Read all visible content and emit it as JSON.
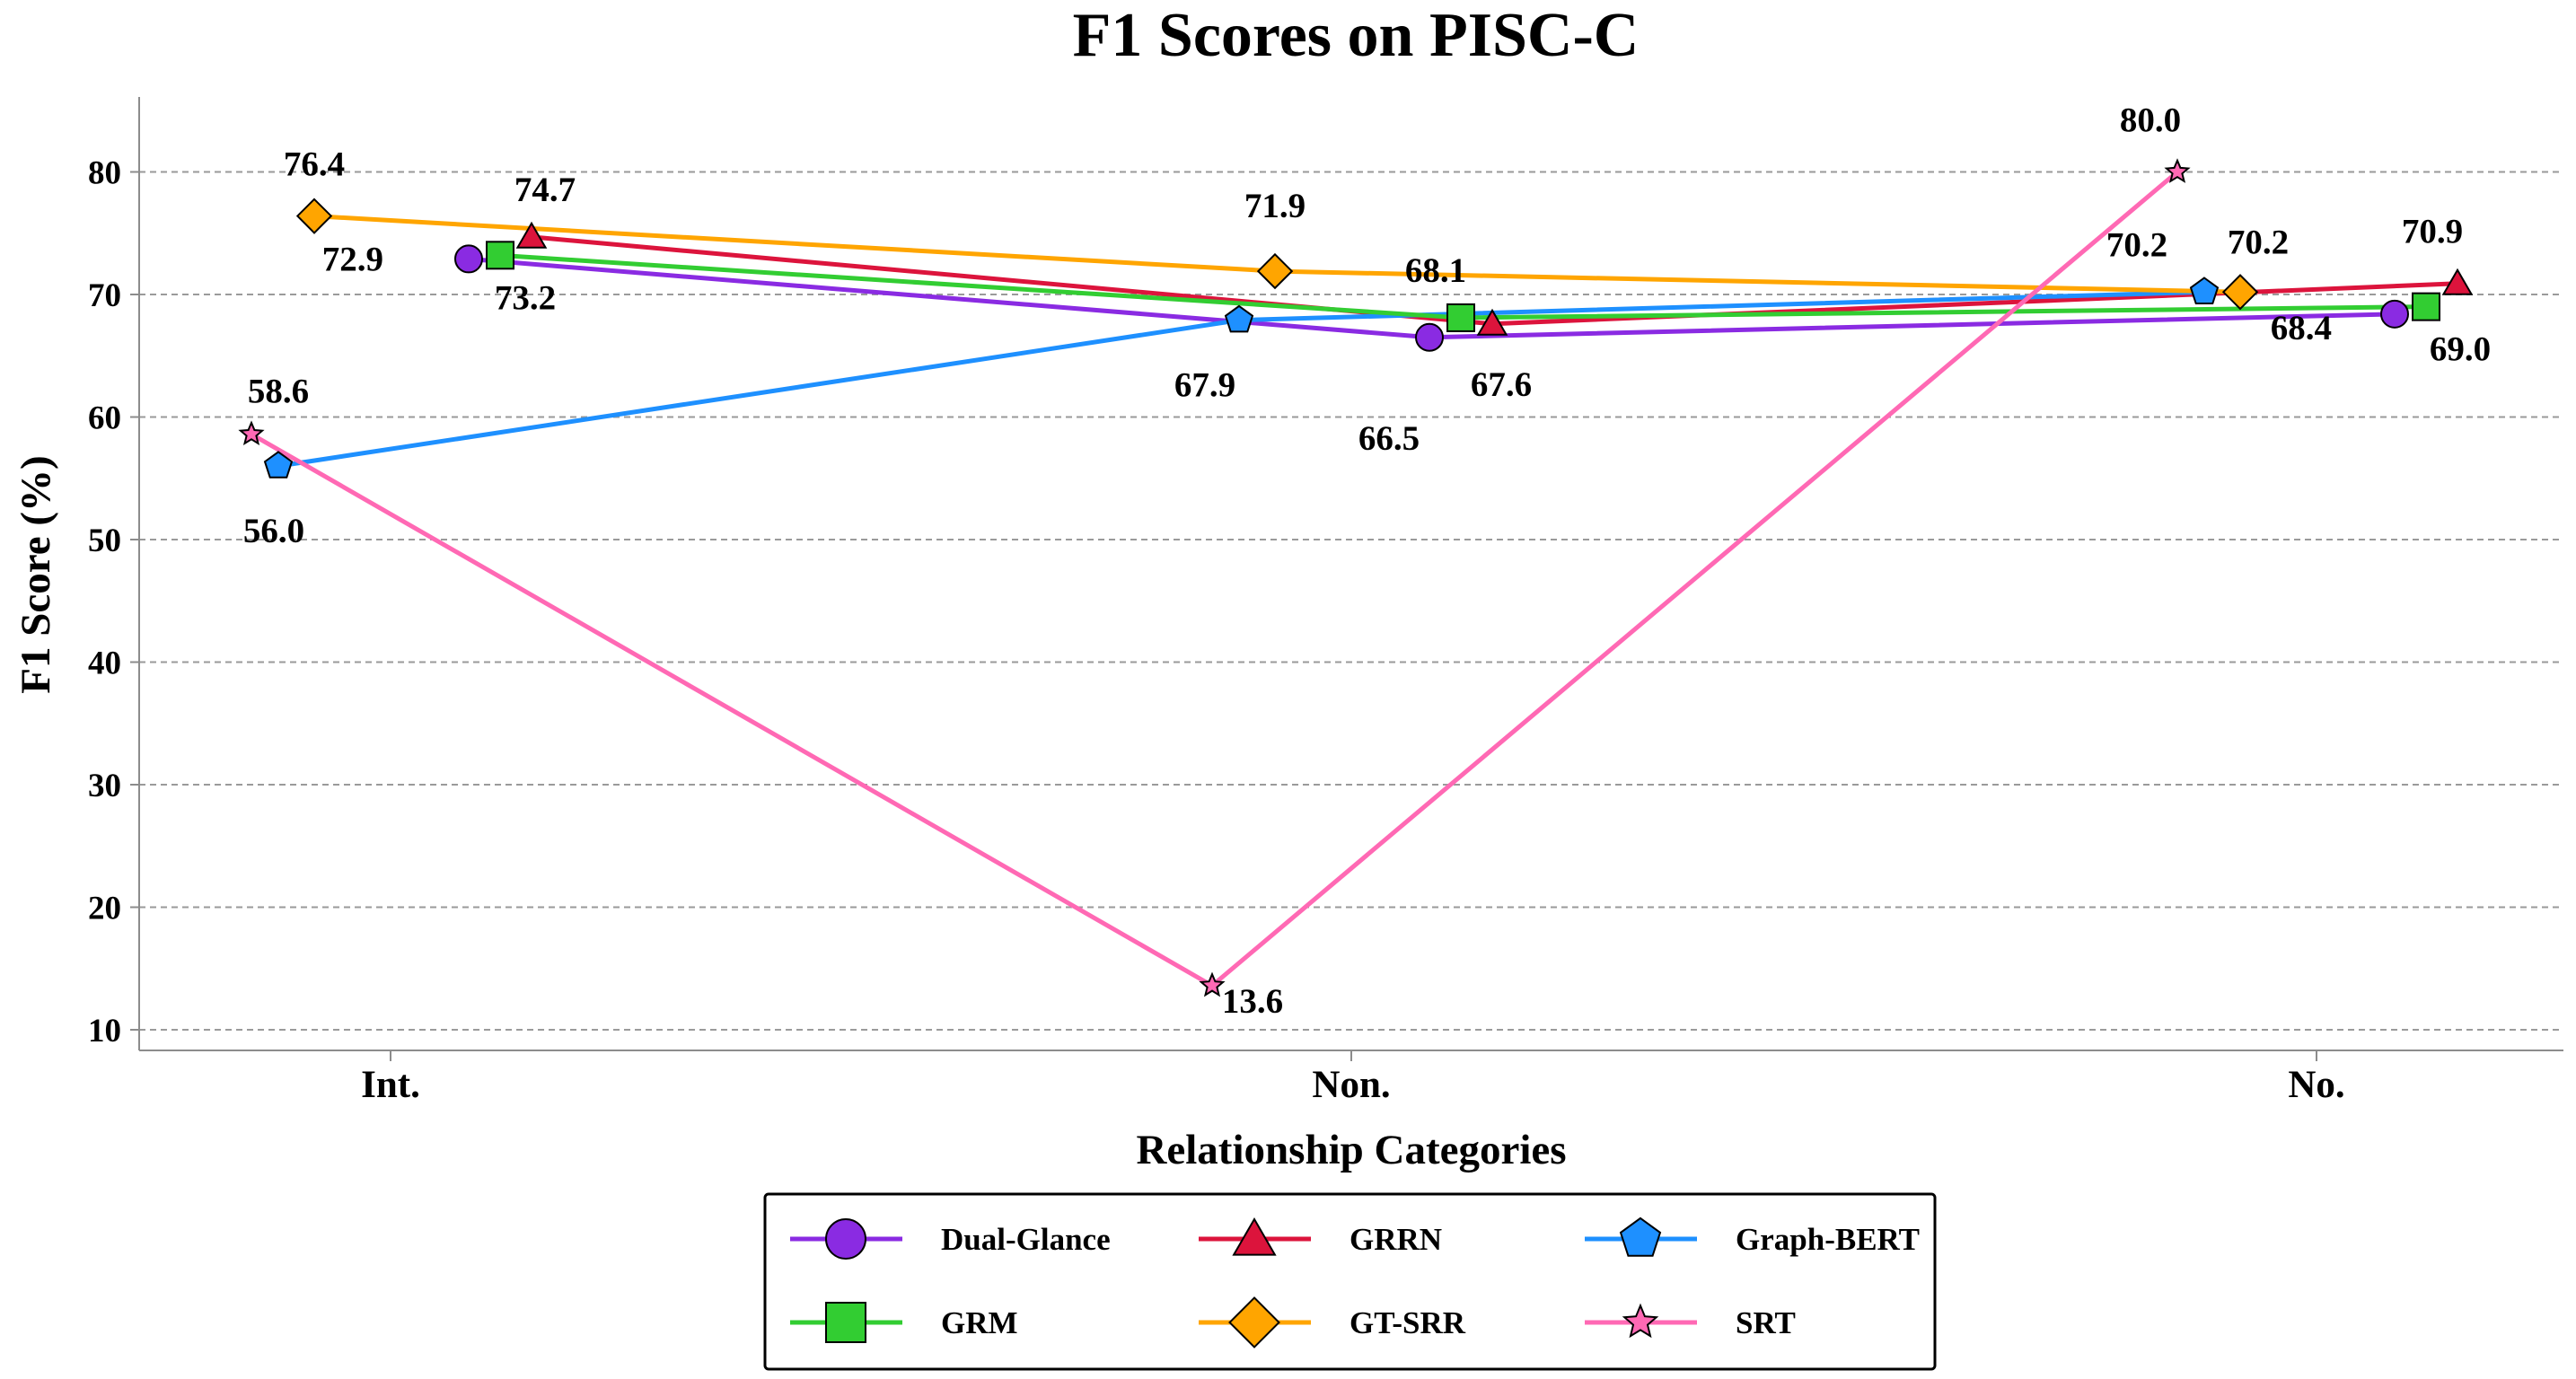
{
  "chart_data": {
    "type": "line",
    "title": "F1 Scores on PISC-C",
    "xlabel": "Relationship Categories",
    "ylabel": "F1 Score (%)",
    "categories": [
      "Int.",
      "Non.",
      "No."
    ],
    "yticks": [
      10,
      20,
      30,
      40,
      50,
      60,
      70,
      80
    ],
    "ylim": [
      8,
      86
    ],
    "grid": "horizontal-dashed",
    "legend_position": "bottom-center",
    "series": [
      {
        "name": "Dual-Glance",
        "values": [
          72.9,
          66.5,
          68.4
        ],
        "color": "#8A2BE2",
        "marker": "circle",
        "labels": [
          "72.9",
          "66.5",
          "68.4"
        ]
      },
      {
        "name": "GRRN",
        "values": [
          74.7,
          67.6,
          70.9
        ],
        "color": "#DC143C",
        "marker": "triangle",
        "labels": [
          "74.7",
          "67.6",
          "70.9"
        ]
      },
      {
        "name": "Graph-BERT",
        "values": [
          56.0,
          67.9,
          70.2
        ],
        "color": "#1E90FF",
        "marker": "pentagon",
        "labels": [
          "56.0",
          "67.9",
          "70.2"
        ]
      },
      {
        "name": "GRM",
        "values": [
          73.2,
          68.1,
          69.0
        ],
        "color": "#32CD32",
        "marker": "square",
        "labels": [
          "73.2",
          "68.1",
          "69.0"
        ]
      },
      {
        "name": "GT-SRR",
        "values": [
          76.4,
          71.9,
          70.2
        ],
        "color": "#FFA500",
        "marker": "diamond",
        "labels": [
          "76.4",
          "71.9",
          "70.2"
        ]
      },
      {
        "name": "SRT",
        "values": [
          58.6,
          13.6,
          80.0
        ],
        "color": "#FF69B4",
        "marker": "star",
        "labels": [
          "58.6",
          "13.6",
          "80.0"
        ]
      }
    ]
  }
}
